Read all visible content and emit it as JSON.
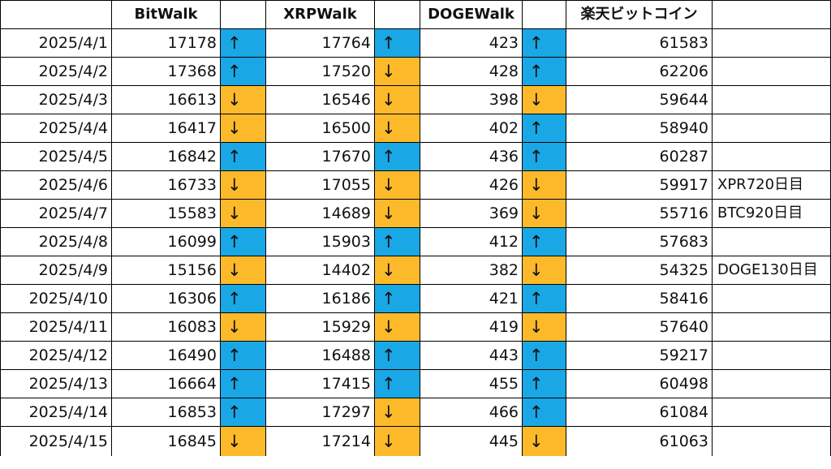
{
  "headers": {
    "date": "",
    "bitwalk": "BitWalk",
    "bitwalk_trend": "",
    "xrpwalk": "XRPWalk",
    "xrpwalk_trend": "",
    "dogewalk": "DOGEWalk",
    "dogewalk_trend": "",
    "rakuten": "楽天ビットコイン",
    "note": ""
  },
  "arrow_symbols": {
    "up": "↑",
    "down": "↓"
  },
  "colors": {
    "up": "#1aa7e6",
    "down": "#fcba2b"
  },
  "rows": [
    {
      "date": "2025/4/1",
      "bitwalk": "17178",
      "bitwalk_trend": "up",
      "xrpwalk": "17764",
      "xrpwalk_trend": "up",
      "dogewalk": "423",
      "dogewalk_trend": "up",
      "rakuten": "61583",
      "note": ""
    },
    {
      "date": "2025/4/2",
      "bitwalk": "17368",
      "bitwalk_trend": "up",
      "xrpwalk": "17520",
      "xrpwalk_trend": "down",
      "dogewalk": "428",
      "dogewalk_trend": "up",
      "rakuten": "62206",
      "note": ""
    },
    {
      "date": "2025/4/3",
      "bitwalk": "16613",
      "bitwalk_trend": "down",
      "xrpwalk": "16546",
      "xrpwalk_trend": "down",
      "dogewalk": "398",
      "dogewalk_trend": "down",
      "rakuten": "59644",
      "note": ""
    },
    {
      "date": "2025/4/4",
      "bitwalk": "16417",
      "bitwalk_trend": "down",
      "xrpwalk": "16500",
      "xrpwalk_trend": "down",
      "dogewalk": "402",
      "dogewalk_trend": "up",
      "rakuten": "58940",
      "note": ""
    },
    {
      "date": "2025/4/5",
      "bitwalk": "16842",
      "bitwalk_trend": "up",
      "xrpwalk": "17670",
      "xrpwalk_trend": "up",
      "dogewalk": "436",
      "dogewalk_trend": "up",
      "rakuten": "60287",
      "note": ""
    },
    {
      "date": "2025/4/6",
      "bitwalk": "16733",
      "bitwalk_trend": "down",
      "xrpwalk": "17055",
      "xrpwalk_trend": "down",
      "dogewalk": "426",
      "dogewalk_trend": "down",
      "rakuten": "59917",
      "note": "XPR720日目"
    },
    {
      "date": "2025/4/7",
      "bitwalk": "15583",
      "bitwalk_trend": "down",
      "xrpwalk": "14689",
      "xrpwalk_trend": "down",
      "dogewalk": "369",
      "dogewalk_trend": "down",
      "rakuten": "55716",
      "note": "BTC920日目"
    },
    {
      "date": "2025/4/8",
      "bitwalk": "16099",
      "bitwalk_trend": "up",
      "xrpwalk": "15903",
      "xrpwalk_trend": "up",
      "dogewalk": "412",
      "dogewalk_trend": "up",
      "rakuten": "57683",
      "note": ""
    },
    {
      "date": "2025/4/9",
      "bitwalk": "15156",
      "bitwalk_trend": "down",
      "xrpwalk": "14402",
      "xrpwalk_trend": "down",
      "dogewalk": "382",
      "dogewalk_trend": "down",
      "rakuten": "54325",
      "note": "DOGE130日目"
    },
    {
      "date": "2025/4/10",
      "bitwalk": "16306",
      "bitwalk_trend": "up",
      "xrpwalk": "16186",
      "xrpwalk_trend": "up",
      "dogewalk": "421",
      "dogewalk_trend": "up",
      "rakuten": "58416",
      "note": ""
    },
    {
      "date": "2025/4/11",
      "bitwalk": "16083",
      "bitwalk_trend": "down",
      "xrpwalk": "15929",
      "xrpwalk_trend": "down",
      "dogewalk": "419",
      "dogewalk_trend": "down",
      "rakuten": "57640",
      "note": ""
    },
    {
      "date": "2025/4/12",
      "bitwalk": "16490",
      "bitwalk_trend": "up",
      "xrpwalk": "16488",
      "xrpwalk_trend": "up",
      "dogewalk": "443",
      "dogewalk_trend": "up",
      "rakuten": "59217",
      "note": ""
    },
    {
      "date": "2025/4/13",
      "bitwalk": "16664",
      "bitwalk_trend": "up",
      "xrpwalk": "17415",
      "xrpwalk_trend": "up",
      "dogewalk": "455",
      "dogewalk_trend": "up",
      "rakuten": "60498",
      "note": ""
    },
    {
      "date": "2025/4/14",
      "bitwalk": "16853",
      "bitwalk_trend": "up",
      "xrpwalk": "17297",
      "xrpwalk_trend": "down",
      "dogewalk": "466",
      "dogewalk_trend": "up",
      "rakuten": "61084",
      "note": ""
    },
    {
      "date": "2025/4/15",
      "bitwalk": "16845",
      "bitwalk_trend": "down",
      "xrpwalk": "17214",
      "xrpwalk_trend": "down",
      "dogewalk": "445",
      "dogewalk_trend": "down",
      "rakuten": "61063",
      "note": ""
    }
  ]
}
